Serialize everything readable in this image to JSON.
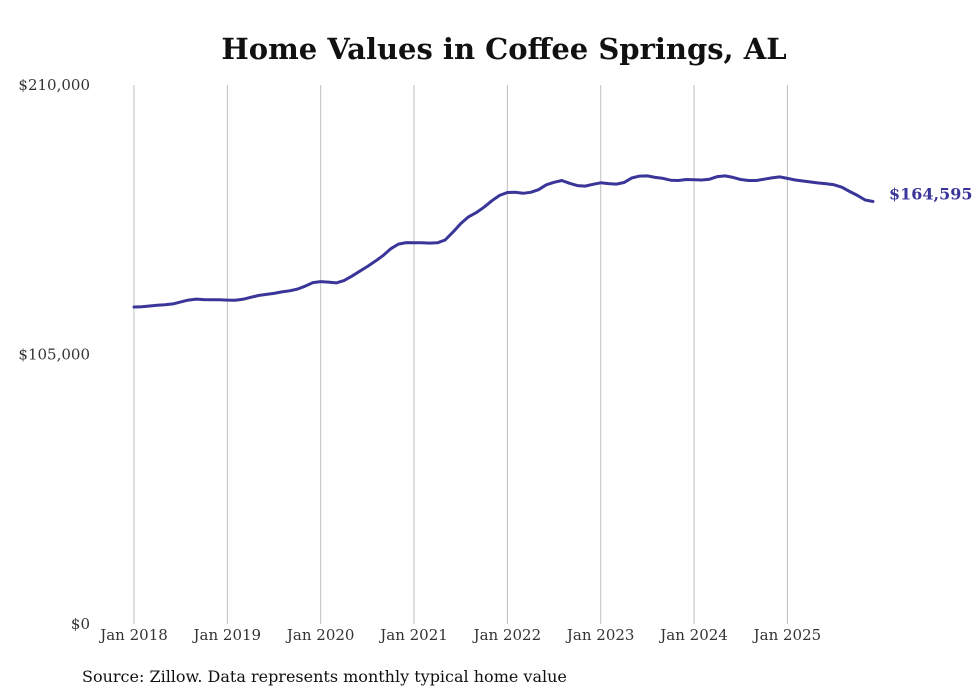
{
  "chart_data": {
    "type": "line",
    "title": "Home Values in Coffee Springs, AL",
    "xlabel": "",
    "ylabel": "",
    "ylim": [
      0,
      210000
    ],
    "y_ticks": [
      0,
      105000,
      210000
    ],
    "y_tick_labels": [
      "$0",
      "$105,000",
      "$210,000"
    ],
    "x_range": [
      2018.0,
      2025.917
    ],
    "x_ticks": [
      2018,
      2019,
      2020,
      2021,
      2022,
      2023,
      2024,
      2025
    ],
    "x_tick_labels": [
      "Jan 2018",
      "Jan 2019",
      "Jan 2020",
      "Jan 2021",
      "Jan 2022",
      "Jan 2023",
      "Jan 2024",
      "Jan 2025"
    ],
    "grid": "vertical",
    "series": [
      {
        "name": "Typical home value",
        "color": "#3a3599",
        "end_label": "$164,595",
        "x": [
          2018.0,
          2018.083,
          2018.167,
          2018.25,
          2018.333,
          2018.417,
          2018.5,
          2018.583,
          2018.667,
          2018.75,
          2018.833,
          2018.917,
          2019.0,
          2019.083,
          2019.167,
          2019.25,
          2019.333,
          2019.417,
          2019.5,
          2019.583,
          2019.667,
          2019.75,
          2019.833,
          2019.917,
          2020.0,
          2020.083,
          2020.167,
          2020.25,
          2020.333,
          2020.417,
          2020.5,
          2020.583,
          2020.667,
          2020.75,
          2020.833,
          2020.917,
          2021.0,
          2021.083,
          2021.167,
          2021.25,
          2021.333,
          2021.417,
          2021.5,
          2021.583,
          2021.667,
          2021.75,
          2021.833,
          2021.917,
          2022.0,
          2022.083,
          2022.167,
          2022.25,
          2022.333,
          2022.417,
          2022.5,
          2022.583,
          2022.667,
          2022.75,
          2022.833,
          2022.917,
          2023.0,
          2023.083,
          2023.167,
          2023.25,
          2023.333,
          2023.417,
          2023.5,
          2023.583,
          2023.667,
          2023.75,
          2023.833,
          2023.917,
          2024.0,
          2024.083,
          2024.167,
          2024.25,
          2024.333,
          2024.417,
          2024.5,
          2024.583,
          2024.667,
          2024.75,
          2024.833,
          2024.917,
          2025.0,
          2025.083,
          2025.167,
          2025.25,
          2025.333,
          2025.417,
          2025.5,
          2025.583,
          2025.667,
          2025.75,
          2025.833,
          2025.917
        ],
        "values": [
          123500,
          123600,
          123900,
          124200,
          124400,
          124700,
          125500,
          126200,
          126600,
          126400,
          126300,
          126300,
          126200,
          126100,
          126500,
          127300,
          128000,
          128400,
          128800,
          129400,
          129800,
          130500,
          131600,
          133000,
          133400,
          133200,
          132900,
          133800,
          135500,
          137400,
          139300,
          141300,
          143500,
          146200,
          148000,
          148600,
          148500,
          148500,
          148400,
          148500,
          149600,
          152700,
          156000,
          158600,
          160300,
          162400,
          164900,
          167000,
          168100,
          168200,
          167800,
          168200,
          169200,
          171100,
          172100,
          172800,
          171700,
          170800,
          170600,
          171300,
          171900,
          171600,
          171400,
          172000,
          173800,
          174500,
          174600,
          174000,
          173600,
          172900,
          172800,
          173200,
          173100,
          173000,
          173300,
          174300,
          174600,
          174000,
          173200,
          172800,
          172800,
          173300,
          173800,
          174200,
          173600,
          173000,
          172600,
          172200,
          171800,
          171500,
          171100,
          170200,
          168500,
          167000,
          165200,
          164595
        ]
      }
    ],
    "source_note": "Source: Zillow. Data represents monthly typical home value"
  }
}
